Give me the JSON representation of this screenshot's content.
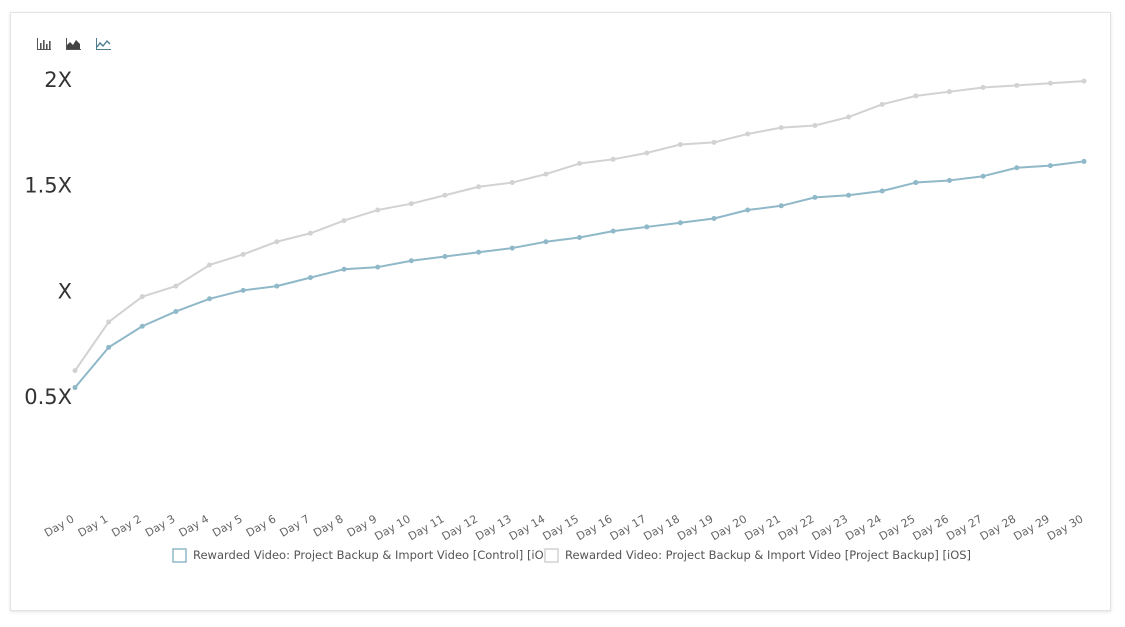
{
  "toolbar": {
    "buttons": [
      {
        "name": "bar-chart-icon"
      },
      {
        "name": "area-chart-icon"
      },
      {
        "name": "line-chart-icon"
      }
    ]
  },
  "chart_data": {
    "type": "line",
    "title": "",
    "xlabel": "",
    "ylabel": "",
    "categories": [
      "Day 0",
      "Day 1",
      "Day 2",
      "Day 3",
      "Day 4",
      "Day 5",
      "Day 6",
      "Day 7",
      "Day 8",
      "Day 9",
      "Day 10",
      "Day 11",
      "Day 12",
      "Day 13",
      "Day 14",
      "Day 15",
      "Day 16",
      "Day 17",
      "Day 18",
      "Day 19",
      "Day 20",
      "Day 21",
      "Day 22",
      "Day 23",
      "Day 24",
      "Day 25",
      "Day 26",
      "Day 27",
      "Day 28",
      "Day 29",
      "Day 30"
    ],
    "y_ticks": [
      {
        "value": 0.5,
        "label": "0.5X"
      },
      {
        "value": 1.0,
        "label": "X"
      },
      {
        "value": 1.5,
        "label": "1.5X"
      },
      {
        "value": 2.0,
        "label": "2X"
      }
    ],
    "ylim": [
      0.5,
      2.0
    ],
    "grid": false,
    "legend_position": "bottom",
    "series": [
      {
        "name": "Rewarded Video: Project Backup & Import Video [Control] [iOS]",
        "color": "#8fb8c8",
        "values": [
          0.54,
          0.73,
          0.83,
          0.9,
          0.96,
          1.0,
          1.02,
          1.06,
          1.1,
          1.11,
          1.14,
          1.16,
          1.18,
          1.2,
          1.23,
          1.25,
          1.28,
          1.3,
          1.32,
          1.34,
          1.38,
          1.4,
          1.44,
          1.45,
          1.47,
          1.51,
          1.52,
          1.54,
          1.58,
          1.59,
          1.61
        ]
      },
      {
        "name": "Rewarded Video: Project Backup & Import Video [Project Backup] [iOS]",
        "color": "#d2d2d2",
        "values": [
          0.62,
          0.85,
          0.97,
          1.02,
          1.12,
          1.17,
          1.23,
          1.27,
          1.33,
          1.38,
          1.41,
          1.45,
          1.49,
          1.51,
          1.55,
          1.6,
          1.62,
          1.65,
          1.69,
          1.7,
          1.74,
          1.77,
          1.78,
          1.82,
          1.88,
          1.92,
          1.94,
          1.96,
          1.97,
          1.98,
          1.99
        ]
      }
    ]
  }
}
